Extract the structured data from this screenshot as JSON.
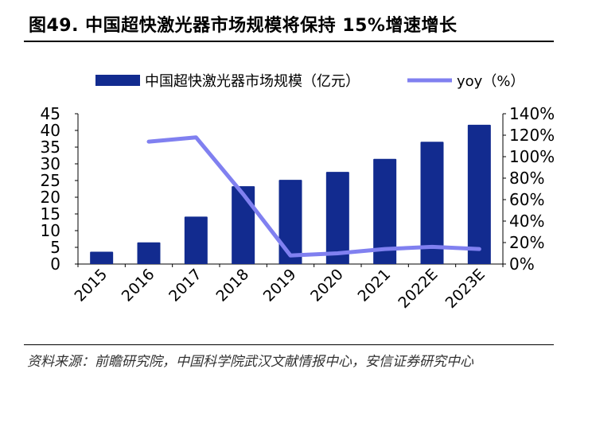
{
  "figure": {
    "title": "图49. 中国超快激光器市场规模将保持 15%增速增长",
    "source": "资料来源：前瞻研究院，中国科学院武汉文献情报中心，安信证券研究中心"
  },
  "chart_data": {
    "type": "bar",
    "categories": [
      "2015",
      "2016",
      "2017",
      "2018",
      "2019",
      "2020",
      "2021",
      "2022E",
      "2023E"
    ],
    "series": [
      {
        "name": "中国超快激光器市场规模（亿元）",
        "kind": "bar",
        "axis": "left",
        "color": "#122B8F",
        "values": [
          3.7,
          6.5,
          14.2,
          23.3,
          25.2,
          27.6,
          31.5,
          36.6,
          41.7
        ]
      },
      {
        "name": "yoy（%）",
        "kind": "line",
        "axis": "right",
        "color": "#8080F0",
        "values": [
          null,
          114,
          118,
          65,
          8,
          10,
          14,
          16,
          14
        ]
      }
    ],
    "y_left": {
      "min": 0,
      "max": 45,
      "ticks": [
        "0",
        "5",
        "10",
        "15",
        "20",
        "25",
        "30",
        "35",
        "40",
        "45"
      ]
    },
    "y_right": {
      "min": 0,
      "max": 140,
      "ticks": [
        "0%",
        "20%",
        "40%",
        "60%",
        "80%",
        "100%",
        "120%",
        "140%"
      ]
    },
    "legend_position": "top",
    "grid": false
  }
}
